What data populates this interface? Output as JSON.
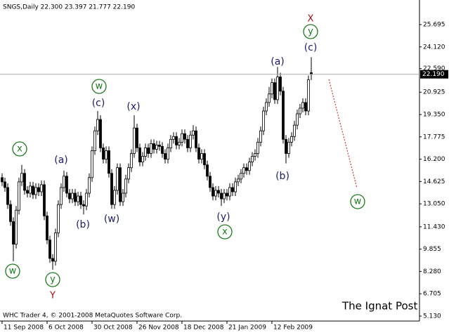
{
  "chart_data": {
    "type": "candlestick",
    "header": "SNGS,Daily  22.300 23.397 21.777 22.190",
    "footer": "WHC Trader 4, © 2001-2008 MetaQuotes Software Corp.",
    "watermark": "The Ignat Post",
    "open": [
      14.9,
      14.6,
      14.2,
      13.0,
      11.8,
      10.2,
      12.6,
      14.6,
      15.2,
      14.0,
      13.8,
      14.3,
      13.7,
      14.2,
      13.9,
      14.4,
      12.2,
      10.5,
      9.2,
      9.0,
      11.0,
      13.0,
      14.2,
      15.0,
      13.8,
      13.4,
      13.8,
      13.2,
      13.6,
      13.0,
      12.9,
      13.8,
      14.9,
      16.8,
      18.2,
      19.0,
      17.0,
      16.2,
      16.8,
      15.2,
      13.0,
      14.0,
      15.6,
      13.2,
      13.8,
      14.8,
      15.6,
      16.6,
      18.4,
      17.0,
      16.0,
      16.4,
      17.0,
      16.6,
      17.3,
      16.9,
      17.2,
      17.1,
      16.6,
      16.2,
      17.0,
      17.6,
      17.8,
      17.2,
      17.4,
      18.0,
      17.6,
      17.0,
      17.9,
      18.2,
      17.0,
      16.2,
      16.6,
      15.8,
      15.0,
      14.2,
      13.6,
      14.0,
      13.8,
      13.4,
      13.8,
      13.6,
      14.2,
      13.9,
      14.6,
      14.8,
      15.2,
      15.6,
      15.4,
      16.0,
      16.4,
      16.6,
      17.4,
      18.2,
      19.6,
      20.2,
      20.8,
      21.6,
      20.4,
      22.0,
      21.0,
      17.6,
      16.6,
      17.4,
      17.8,
      18.6,
      19.4,
      19.8,
      20.2,
      19.6,
      22.3
    ],
    "high": [
      15.2,
      14.9,
      14.5,
      13.3,
      12.1,
      12.9,
      14.9,
      15.8,
      15.5,
      14.3,
      14.6,
      14.6,
      14.5,
      14.5,
      14.7,
      14.7,
      12.5,
      10.8,
      9.5,
      11.3,
      13.3,
      14.5,
      15.4,
      15.3,
      14.1,
      14.1,
      14.1,
      13.9,
      13.9,
      13.3,
      14.1,
      15.2,
      17.1,
      18.5,
      19.6,
      19.3,
      17.3,
      17.1,
      17.1,
      15.5,
      14.3,
      15.9,
      15.9,
      14.1,
      15.1,
      15.9,
      16.9,
      19.3,
      18.7,
      17.3,
      16.7,
      17.3,
      17.3,
      17.6,
      17.6,
      17.5,
      17.5,
      17.4,
      16.9,
      17.3,
      17.9,
      18.1,
      18.1,
      17.7,
      18.3,
      18.3,
      17.9,
      18.2,
      18.6,
      18.5,
      17.3,
      16.9,
      16.9,
      16.1,
      15.3,
      14.5,
      14.3,
      14.3,
      14.1,
      14.1,
      14.1,
      14.5,
      14.5,
      14.9,
      15.1,
      15.5,
      15.9,
      15.9,
      16.3,
      16.7,
      16.9,
      17.7,
      18.5,
      19.9,
      20.5,
      21.3,
      21.9,
      21.9,
      22.7,
      22.3,
      21.3,
      17.9,
      17.7,
      18.1,
      18.9,
      19.7,
      20.1,
      20.5,
      20.5,
      22.1,
      23.397
    ],
    "low": [
      14.3,
      13.9,
      12.7,
      11.5,
      9.0,
      9.9,
      12.3,
      14.3,
      13.7,
      13.5,
      13.5,
      13.4,
      13.4,
      13.6,
      13.6,
      11.9,
      10.2,
      8.9,
      8.4,
      8.7,
      10.7,
      12.7,
      13.9,
      13.5,
      13.1,
      13.1,
      12.9,
      12.9,
      12.7,
      12.3,
      12.6,
      13.5,
      14.6,
      16.5,
      17.9,
      16.7,
      15.9,
      15.9,
      14.9,
      12.7,
      12.7,
      13.7,
      12.9,
      12.9,
      13.5,
      14.5,
      15.3,
      16.3,
      16.7,
      15.7,
      15.7,
      16.1,
      16.3,
      16.3,
      16.6,
      16.6,
      16.8,
      16.3,
      15.9,
      15.9,
      16.7,
      17.3,
      16.9,
      16.9,
      17.1,
      17.3,
      16.7,
      16.7,
      17.6,
      16.7,
      15.9,
      15.9,
      15.5,
      14.7,
      13.9,
      13.3,
      13.3,
      13.5,
      12.9,
      13.1,
      13.3,
      13.3,
      13.6,
      13.6,
      14.3,
      14.5,
      14.9,
      15.1,
      15.1,
      15.7,
      16.1,
      16.3,
      17.1,
      17.9,
      19.3,
      19.9,
      20.5,
      20.1,
      20.1,
      20.7,
      17.3,
      15.9,
      16.3,
      17.1,
      17.5,
      18.3,
      19.1,
      19.5,
      19.3,
      19.3,
      21.777
    ],
    "close": [
      14.6,
      14.2,
      13.0,
      11.8,
      10.2,
      12.6,
      14.6,
      15.2,
      14.0,
      13.8,
      14.3,
      13.7,
      14.2,
      13.9,
      14.4,
      12.2,
      10.5,
      9.2,
      9.0,
      11.0,
      13.0,
      14.2,
      15.0,
      13.8,
      13.4,
      13.8,
      13.2,
      13.6,
      13.0,
      12.9,
      13.8,
      14.9,
      16.8,
      18.2,
      19.0,
      17.0,
      16.2,
      16.8,
      15.2,
      13.0,
      14.0,
      15.6,
      13.2,
      13.8,
      14.8,
      15.6,
      16.6,
      18.4,
      17.0,
      16.0,
      16.4,
      17.0,
      16.6,
      17.3,
      16.9,
      17.2,
      17.1,
      16.6,
      16.2,
      17.0,
      17.6,
      17.8,
      17.2,
      17.4,
      18.0,
      17.6,
      17.0,
      17.9,
      18.2,
      17.0,
      16.2,
      16.6,
      15.8,
      15.0,
      14.2,
      13.6,
      14.0,
      13.8,
      13.4,
      13.8,
      13.6,
      14.2,
      13.9,
      14.6,
      14.8,
      15.2,
      15.6,
      15.4,
      16.0,
      16.4,
      16.6,
      17.4,
      18.2,
      19.6,
      20.2,
      20.8,
      21.6,
      20.4,
      22.0,
      21.0,
      17.6,
      16.6,
      17.4,
      17.8,
      18.6,
      19.4,
      19.8,
      20.2,
      19.6,
      21.8,
      22.19
    ],
    "current_price": {
      "value": 22.19,
      "label": "22.190"
    },
    "xlim": [
      -0.75,
      148.5
    ],
    "xticks": [
      {
        "value": 0,
        "label": "11 Sep 2008"
      },
      {
        "value": 16,
        "label": "6 Oct 2008"
      },
      {
        "value": 32,
        "label": "30 Oct 2008"
      },
      {
        "value": 48,
        "label": "26 Nov 2008"
      },
      {
        "value": 64,
        "label": "18 Dec 2008"
      },
      {
        "value": 80,
        "label": "21 Jan 2009"
      },
      {
        "value": 96,
        "label": "12 Feb 2009"
      }
    ],
    "ylim": [
      4.78,
      27.43
    ],
    "yticks": [
      25.695,
      {
        "value": 24.12,
        "label": "24.120"
      },
      {
        "value": 22.59,
        "label": "22.590"
      },
      20.925,
      {
        "value": 19.35,
        "label": "19.350"
      },
      17.775,
      {
        "value": 16.2,
        "label": "16.200"
      },
      14.625,
      {
        "value": 13.05,
        "label": "13.050"
      },
      {
        "value": 11.43,
        "label": "11.430"
      },
      9.855,
      {
        "value": 8.28,
        "label": "8.280"
      },
      6.705,
      {
        "value": 5.13,
        "label": "5.130"
      }
    ],
    "annotations": [
      "x",
      "w",
      "y",
      "Y",
      "(a)",
      "(b)",
      "(c)",
      "w",
      "(w)",
      "(x)",
      "(y)",
      "x",
      "(a)",
      "(b)",
      "X",
      "y",
      "(c)",
      "w"
    ]
  }
}
